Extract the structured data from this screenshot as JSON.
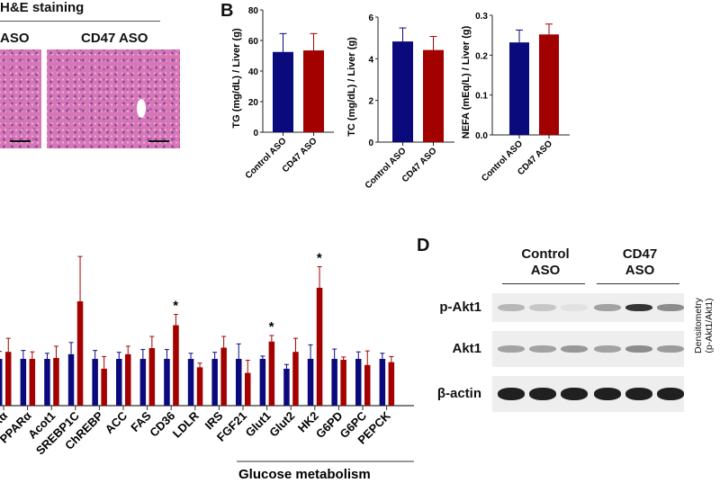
{
  "panel_a": {
    "title": "H&E staining",
    "group_left": "ASO",
    "group_right": "CD47 ASO"
  },
  "panel_b": {
    "letter": "B"
  },
  "panel_d": {
    "letter": "D",
    "group_control": [
      "Control",
      "ASO"
    ],
    "group_cd47": [
      "CD47",
      "ASO"
    ],
    "blots": [
      {
        "label": "p-Akt1",
        "band_intensity": [
          0.25,
          0.18,
          0.05,
          0.35,
          0.85,
          0.45
        ]
      },
      {
        "label": "Akt1",
        "band_intensity": [
          0.35,
          0.35,
          0.4,
          0.35,
          0.45,
          0.38
        ]
      },
      {
        "label": "β-actin",
        "band_intensity": [
          0.95,
          0.95,
          0.95,
          0.95,
          0.95,
          0.95
        ]
      }
    ],
    "side_axis_label": [
      "Densitometry",
      "(p-Akt1/Akt1)"
    ]
  },
  "colors": {
    "control": "#0a0a7d",
    "cd47": "#a30000"
  },
  "chart_data": [
    {
      "type": "bar",
      "categories": [
        "Control ASO",
        "CD47 ASO"
      ],
      "values": [
        52.5,
        53.5
      ],
      "errors": [
        12,
        11
      ],
      "ylabel": "TG (mg/dL) / Liver (g)",
      "ylim": [
        0,
        80
      ],
      "yticks": [
        "0",
        "20",
        "40",
        "60",
        "80"
      ]
    },
    {
      "type": "bar",
      "categories": [
        "Control ASO",
        "CD47 ASO"
      ],
      "values": [
        4.83,
        4.42
      ],
      "errors": [
        0.65,
        0.65
      ],
      "ylabel": "TC (mg/dL) / Liver (g)",
      "ylim": [
        0,
        6
      ],
      "yticks": [
        "0",
        "2",
        "4",
        "6"
      ]
    },
    {
      "type": "bar",
      "categories": [
        "Control ASO",
        "CD47 ASO"
      ],
      "values": [
        0.232,
        0.252
      ],
      "errors": [
        0.031,
        0.026
      ],
      "ylabel": "NEFA (mEq/L) / Liver (g)",
      "ylim": [
        0,
        0.3
      ],
      "yticks": [
        "0.0",
        "0.1",
        "0.2",
        "0.3"
      ]
    },
    {
      "type": "bar",
      "categories": [
        "Rα",
        "PPARα",
        "Acot1",
        "SREBP1C",
        "ChREBP",
        "ACC",
        "FAS",
        "CD36",
        "LDLR",
        "IRS",
        "FGF21",
        "Glut1",
        "Glut2",
        "HK2",
        "G6PD",
        "G6PC",
        "PEPCK"
      ],
      "series": [
        {
          "values": [
            1.0,
            1.0,
            1.0,
            1.1,
            1.0,
            1.0,
            1.0,
            1.0,
            1.0,
            1.0,
            1.0,
            1.0,
            0.79,
            1.0,
            1.0,
            1.0,
            1.0
          ],
          "errors": [
            0.16,
            0.18,
            0.12,
            0.25,
            0.18,
            0.14,
            0.2,
            0.2,
            0.12,
            0.14,
            0.32,
            0.06,
            0.09,
            0.3,
            0.21,
            0.15,
            0.12
          ]
        },
        {
          "values": [
            1.15,
            1.0,
            1.02,
            2.23,
            0.79,
            1.1,
            1.23,
            1.72,
            0.82,
            1.24,
            0.7,
            1.37,
            1.15,
            2.52,
            0.98,
            0.87,
            0.93
          ],
          "errors": [
            0.29,
            0.15,
            0.25,
            0.96,
            0.26,
            0.17,
            0.25,
            0.23,
            0.09,
            0.24,
            0.27,
            0.13,
            0.29,
            0.45,
            0.06,
            0.3,
            0.12
          ]
        }
      ],
      "significance": [
        "",
        "",
        "",
        "",
        "",
        "",
        "",
        "*",
        "",
        "",
        "",
        "*",
        "",
        "*",
        "",
        "",
        ""
      ],
      "group_label": "Glucose metabolism"
    }
  ]
}
